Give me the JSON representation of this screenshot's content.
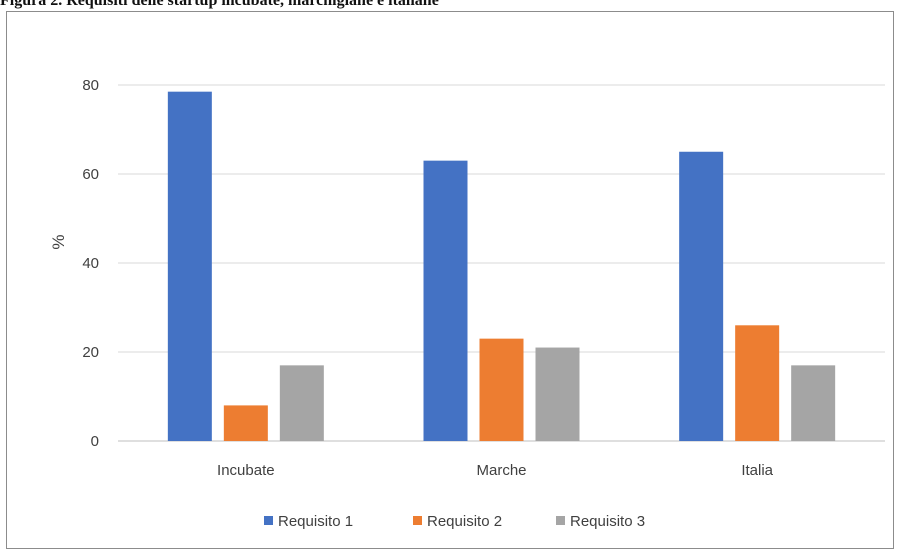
{
  "caption": "Figura 2. Requisiti delle startup incubate, marchigiane e italiane",
  "chart_data": {
    "type": "bar",
    "categories": [
      "Incubate",
      "Marche",
      "Italia"
    ],
    "series": [
      {
        "name": "Requisito 1",
        "values": [
          78.5,
          63,
          65
        ],
        "color": "#4472c4"
      },
      {
        "name": "Requisito 2",
        "values": [
          8,
          23,
          26
        ],
        "color": "#ed7d31"
      },
      {
        "name": "Requisito 3",
        "values": [
          17,
          21,
          17
        ],
        "color": "#a5a5a5"
      }
    ],
    "ylabel": "%",
    "ylim": [
      0,
      80
    ],
    "yticks": [
      0,
      20,
      40,
      60,
      80
    ],
    "grid": true,
    "legend": "bottom-center"
  }
}
